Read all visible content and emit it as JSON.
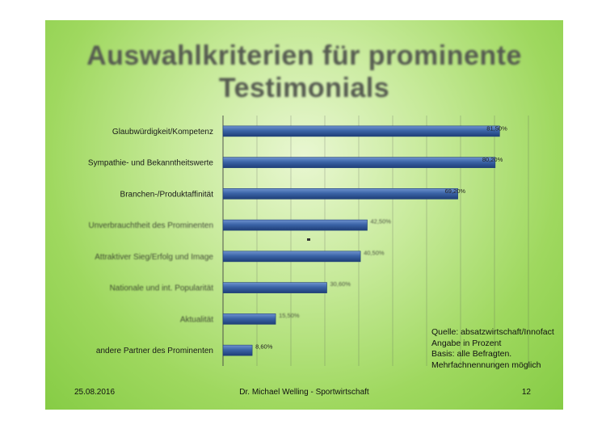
{
  "slide": {
    "title_line1": "Auswahlkriterien für prominente",
    "title_line2": "Testimonials",
    "source": {
      "line1": "Quelle: absatzwirtschaft/Innofact",
      "line2": "Angabe in Prozent",
      "line3": "Basis: alle Befragten.",
      "line4": "Mehrfachnennungen möglich"
    },
    "footer": {
      "date": "25.08.2016",
      "author": "Dr. Michael Welling - Sportwirtschaft",
      "page": "12"
    },
    "colors": {
      "bar": "#3b64a7",
      "bar_dark": "#1f3f78",
      "bar_light": "#6f93cf",
      "background": "#9fd85f"
    }
  },
  "chart_data": {
    "type": "bar",
    "orientation": "horizontal",
    "title": "",
    "xlabel": "",
    "ylabel": "",
    "xlim": [
      0,
      90
    ],
    "grid": true,
    "categories": [
      "Glaubwürdigkeit/Kompetenz",
      "Sympathie- und Bekanntheitswerte",
      "Branchen-/Produktaffinität",
      "Unverbrauchtheit des Prominenten",
      "Attraktiver Sieg/Erfolg und Image",
      "Nationale und int. Popularität",
      "Aktualität",
      "andere Partner des Prominenten"
    ],
    "values": [
      81.5,
      80.2,
      69.2,
      42.5,
      40.5,
      30.6,
      15.5,
      8.6
    ],
    "value_labels": [
      "81,50%",
      "80,20%",
      "69,20%",
      "42,50%",
      "40,50%",
      "30,60%",
      "15,50%",
      "8,60%"
    ]
  }
}
